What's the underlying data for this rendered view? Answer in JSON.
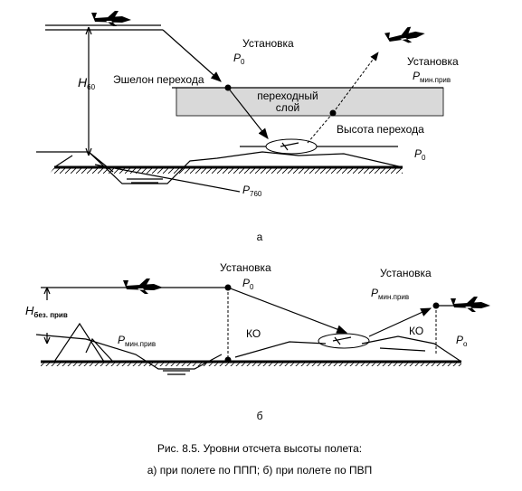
{
  "panel_a": {
    "setting_left": "Установка",
    "p0_left": {
      "main": "P",
      "sub": "0"
    },
    "transition_level": "Эшелон перехода",
    "h": {
      "main": "H",
      "sub": "60"
    },
    "layer": [
      "переходный",
      "слой"
    ],
    "setting_right": "Установка",
    "pmin": {
      "main": "P",
      "sub": "мин.прив"
    },
    "transition_altitude": "Высота перехода",
    "p0_right": {
      "main": "P",
      "sub": "0"
    },
    "p760": {
      "main": "P",
      "sub": "760"
    },
    "label": "а"
  },
  "panel_b": {
    "setting_left": "Установка",
    "p0_left": {
      "main": "P",
      "sub": "0"
    },
    "setting_right": "Установка",
    "pmin_right": {
      "main": "P",
      "sub": "мин.прив"
    },
    "h": {
      "main": "H",
      "sub": "без. прив"
    },
    "pmin_left": {
      "main": "P",
      "sub": "мин.прив"
    },
    "ko_left": "КО",
    "ko_right": "КО",
    "p0_right": {
      "main": "P",
      "sub": "о"
    },
    "label": "б"
  },
  "caption": [
    "Рис. 8.5. Уровни отсчета высоты полета:",
    "а) при полете по ППП; б) при полете по ПВП"
  ]
}
